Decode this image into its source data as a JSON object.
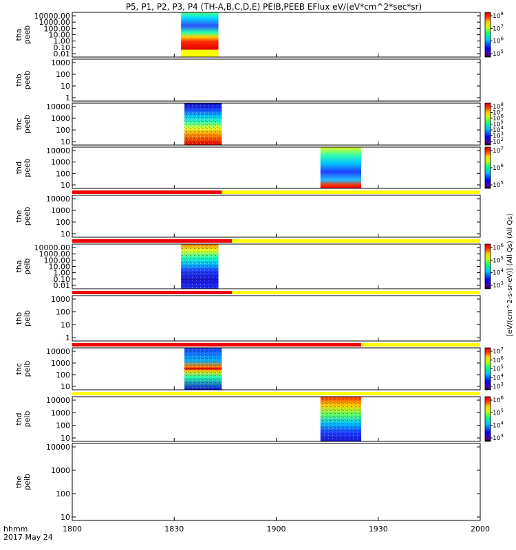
{
  "chart_data": {
    "type": "heatmap",
    "title": "P5, P1, P2, P3, P4 (TH-A,B,C,D,E) PEIB,PEEB EFlux eV/(eV*cm^2*sec*sr)",
    "time_axis": {
      "label_1": "hhmm",
      "label_2": "2017 May 24",
      "ticks": [
        "1800",
        "1830",
        "1900",
        "1930",
        "2000"
      ],
      "range_hhmm": [
        "1800",
        "2000"
      ]
    },
    "colorbar_label_visible": "[eV/(cm^2-s-sr-eV)] (All Qs) (All Qs)",
    "panels": [
      {
        "id": "tha_peeb",
        "ylabel_1": "tha",
        "ylabel_2": "peeb",
        "yticks": [
          "10000.00",
          "1000.00",
          "100.00",
          "10.00",
          "1.00",
          "0.10",
          "0.01"
        ],
        "data_start": "1832",
        "data_end": "1843",
        "colorbar_ticks": [
          "10^5",
          "10^6",
          "10^7",
          "10^8"
        ],
        "flag_bar": null
      },
      {
        "id": "thb_peeb",
        "ylabel_1": "thb",
        "ylabel_2": "peeb",
        "yticks": [
          "1000",
          "100",
          "10",
          "1"
        ],
        "data_start": null,
        "data_end": null,
        "colorbar_ticks": [],
        "flag_bar": null
      },
      {
        "id": "thc_peeb",
        "ylabel_1": "thc",
        "ylabel_2": "peeb",
        "yticks": [
          "10000",
          "1000",
          "100",
          "10"
        ],
        "data_start": "1833",
        "data_end": "1844",
        "colorbar_ticks": [
          "10^2",
          "10^3",
          "10^4",
          "10^5",
          "10^6",
          "10^7",
          "10^8"
        ],
        "flag_bar": null
      },
      {
        "id": "thd_peeb",
        "ylabel_1": "thd",
        "ylabel_2": "peeb",
        "yticks": [
          "10000",
          "1000",
          "100",
          "10"
        ],
        "data_start": "1913",
        "data_end": "1925",
        "colorbar_ticks": [
          "10^5",
          "10^6",
          "10^7"
        ],
        "flag_bar": null
      },
      {
        "id": "the_peeb",
        "ylabel_1": "the",
        "ylabel_2": "peeb",
        "yticks": [
          "10000",
          "1000",
          "100",
          "10"
        ],
        "data_start": null,
        "data_end": null,
        "colorbar_ticks": [],
        "flag_bar": {
          "red_until": "1844"
        }
      },
      {
        "id": "tha_peib",
        "ylabel_1": "tha",
        "ylabel_2": "peib",
        "yticks": [
          "10000.00",
          "1000.00",
          "100.00",
          "10.00",
          "1.00",
          "0.10",
          "0.01"
        ],
        "data_start": "1832",
        "data_end": "1843",
        "colorbar_ticks": [
          "10^3",
          "10^4",
          "10^5",
          "10^6"
        ],
        "flag_bar": {
          "red_until": "1847"
        }
      },
      {
        "id": "thb_peib",
        "ylabel_1": "thb",
        "ylabel_2": "peib",
        "yticks": [
          "1000",
          "100",
          "10",
          "1"
        ],
        "data_start": null,
        "data_end": null,
        "colorbar_ticks": [],
        "flag_bar": {
          "red_until": "1847"
        }
      },
      {
        "id": "thc_peib",
        "ylabel_1": "thc",
        "ylabel_2": "peib",
        "yticks": [
          "10000",
          "1000",
          "100",
          "10"
        ],
        "data_start": "1833",
        "data_end": "1844",
        "colorbar_ticks": [
          "10^3",
          "10^4",
          "10^5",
          "10^6",
          "10^7"
        ],
        "flag_bar": {
          "red_until": "1925"
        }
      },
      {
        "id": "thd_peib",
        "ylabel_1": "thd",
        "ylabel_2": "peib",
        "yticks": [
          "10000",
          "1000",
          "100",
          "10"
        ],
        "data_start": "1913",
        "data_end": "1925",
        "colorbar_ticks": [
          "10^3",
          "10^4",
          "10^5",
          "10^6"
        ],
        "flag_bar": {
          "red_until": null
        }
      },
      {
        "id": "the_peib",
        "ylabel_1": "the",
        "ylabel_2": "peib",
        "yticks": [
          "10000",
          "1000",
          "100",
          "10"
        ],
        "data_start": null,
        "data_end": null,
        "colorbar_ticks": [],
        "flag_bar": null
      }
    ]
  }
}
